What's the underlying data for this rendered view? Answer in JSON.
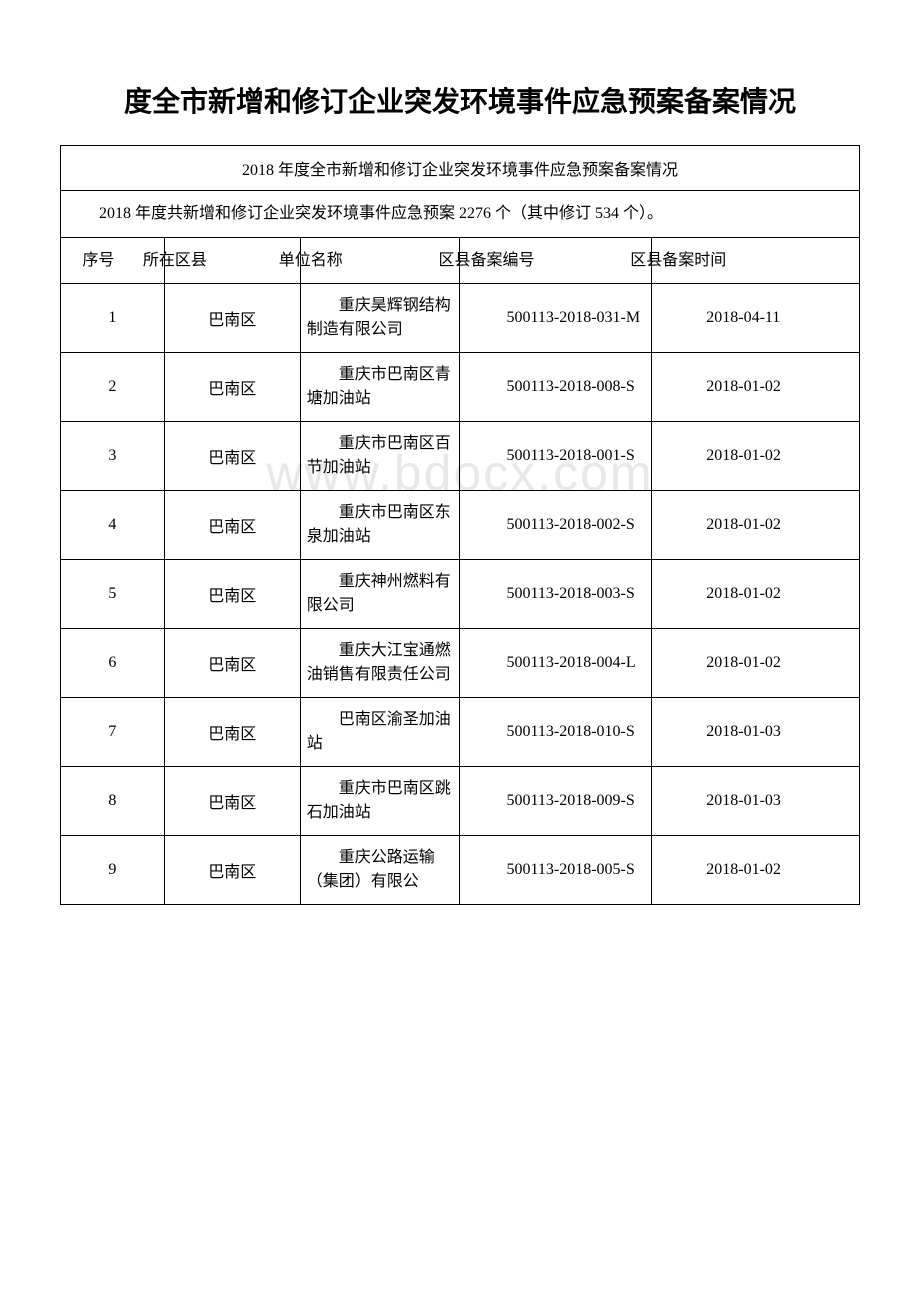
{
  "page_title": "度全市新增和修订企业突发环境事件应急预案备案情况",
  "table_caption": "2018 年度全市新增和修订企业突发环境事件应急预案备案情况",
  "table_intro": "2018 年度共新增和修订企业突发环境事件应急预案 2276 个（其中修订 534 个）。",
  "watermark": "www.bdocx.com",
  "headers": {
    "seq": "序号",
    "district": "所在区县",
    "name": "单位名称",
    "code": "区县备案编号",
    "time": "区县备案时间"
  },
  "rows": [
    {
      "seq": "1",
      "district": "巴南区",
      "name": "重庆昊辉钢结构制造有限公司",
      "code": "500113-2018-031-M",
      "time": "2018-04-11"
    },
    {
      "seq": "2",
      "district": "巴南区",
      "name": "重庆市巴南区青塘加油站",
      "code": "500113-2018-008-S",
      "time": "2018-01-02"
    },
    {
      "seq": "3",
      "district": "巴南区",
      "name": "重庆市巴南区百节加油站",
      "code": "500113-2018-001-S",
      "time": "2018-01-02"
    },
    {
      "seq": "4",
      "district": "巴南区",
      "name": "重庆市巴南区东泉加油站",
      "code": "500113-2018-002-S",
      "time": "2018-01-02"
    },
    {
      "seq": "5",
      "district": "巴南区",
      "name": "重庆神州燃料有限公司",
      "code": "500113-2018-003-S",
      "time": "2018-01-02"
    },
    {
      "seq": "6",
      "district": "巴南区",
      "name": "重庆大江宝通燃油销售有限责任公司",
      "code": "500113-2018-004-L",
      "time": "2018-01-02"
    },
    {
      "seq": "7",
      "district": "巴南区",
      "name": "巴南区渝圣加油站",
      "code": "500113-2018-010-S",
      "time": "2018-01-03"
    },
    {
      "seq": "8",
      "district": "巴南区",
      "name": "重庆市巴南区跳石加油站",
      "code": "500113-2018-009-S",
      "time": "2018-01-03"
    },
    {
      "seq": "9",
      "district": "巴南区",
      "name": "重庆公路运输（集团）有限公",
      "code": "500113-2018-005-S",
      "time": "2018-01-02"
    }
  ],
  "styling": {
    "title_fontsize": 28,
    "body_fontsize": 16,
    "border_color": "#000000",
    "text_color": "#000000",
    "background_color": "#ffffff",
    "watermark_color": "#e8e8e8",
    "font_family": "SimSun",
    "column_widths": {
      "seq": "13%",
      "district": "17%",
      "name": "20%",
      "code": "24%",
      "time": "26%"
    }
  }
}
